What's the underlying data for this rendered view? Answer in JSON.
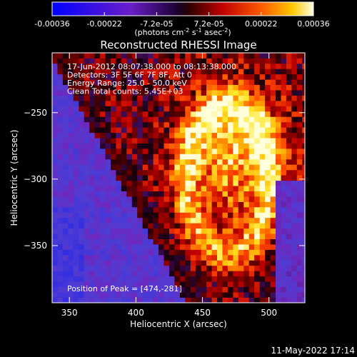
{
  "chart_data": {
    "type": "heatmap",
    "title": "Reconstructed RHESSI Image",
    "xlabel": "Heliocentric X (arcsec)",
    "ylabel": "Heliocentric Y (arcsec)",
    "xlim": [
      337,
      527
    ],
    "ylim": [
      -393,
      -205
    ],
    "x_ticks": [
      350,
      400,
      450,
      500
    ],
    "y_ticks": [
      -250,
      -300,
      -350
    ],
    "colorbar": {
      "range": [
        -0.00036,
        0.00036
      ],
      "tick_labels": [
        "-0.00036",
        "-0.00022",
        "-7.2e-05",
        "7.2e-05",
        "0.00022",
        "0.00036"
      ],
      "units": "(photons cm",
      "units_sup1": "-2",
      "units_mid": " s",
      "units_sup2": "-1",
      "units_mid2": " asec",
      "units_sup3": "-2",
      "units_end": ")"
    },
    "annotations": [
      "17-Jun-2012 08:07:38.000 to 08:13:38.000",
      "Detectors: 3F 5F 6F 7F 8F, Att 0",
      "Energy Range: 25.0 - 50.0 keV",
      "Clean     Total counts: 5.45E+03"
    ],
    "peak_label": "Position of Peak = [474,-281]",
    "peak": [
      474,
      -281
    ]
  },
  "footer_date": "11-May-2022 17:14"
}
